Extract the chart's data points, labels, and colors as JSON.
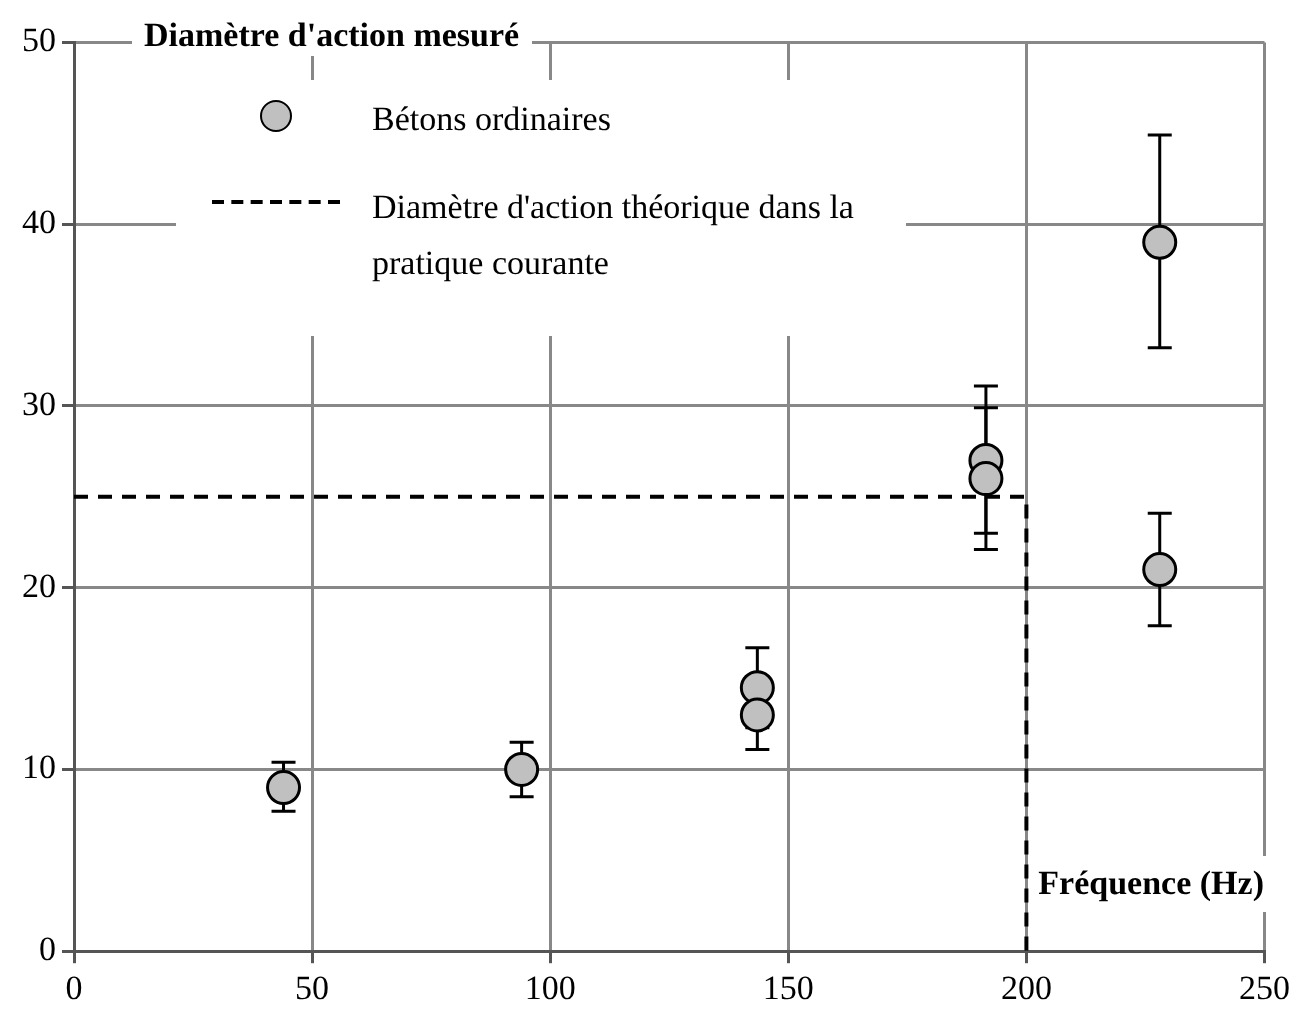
{
  "chart_data": {
    "type": "scatter",
    "ylabel": "Diamètre d'action mesuré",
    "xlabel": "Fréquence (Hz)",
    "xlim": [
      0,
      250
    ],
    "xticks": [
      0,
      50,
      100,
      150,
      200,
      250
    ],
    "ylim": [
      0,
      50
    ],
    "yticks": [
      0,
      10,
      20,
      30,
      40,
      50
    ],
    "grid": true,
    "legend": "top left",
    "marker": "circle",
    "series": [
      {
        "name": "Bétons ordinaires",
        "color": "#c0c0c0",
        "x": [
          44,
          94,
          143.5,
          143.5,
          191.5,
          191.5,
          228,
          228
        ],
        "values": [
          9,
          10,
          14.5,
          13,
          27,
          26,
          39,
          21
        ],
        "errors": [
          [
            7.7,
            10.4
          ],
          [
            8.5,
            11.5
          ],
          [
            12.3,
            16.7
          ],
          [
            11.1,
            14.9
          ],
          [
            23,
            31.1
          ],
          [
            22.1,
            29.9
          ],
          [
            33.2,
            44.9
          ],
          [
            17.9,
            24.1
          ]
        ]
      },
      {
        "name": "Diamètre d'action théorique dans la pratique courante",
        "type": "line",
        "color": "#000000",
        "line_style": "dashed",
        "marker": "none",
        "x": [
          0,
          200,
          200
        ],
        "values": [
          25,
          25,
          0
        ]
      }
    ]
  }
}
